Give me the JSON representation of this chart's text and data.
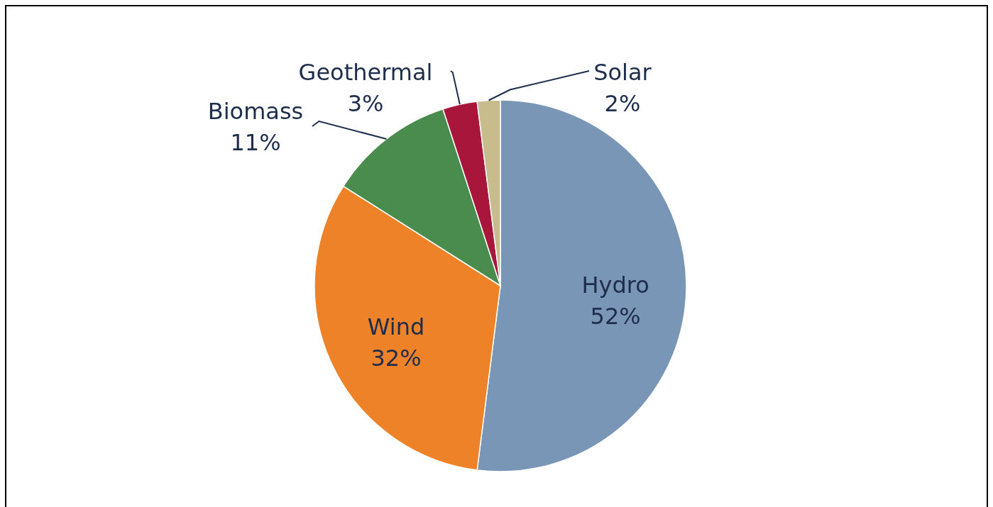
{
  "chart_data": {
    "type": "pie",
    "categories": [
      "Hydro",
      "Wind",
      "Biomass",
      "Geothermal",
      "Solar"
    ],
    "values": [
      52,
      32,
      11,
      3,
      2
    ],
    "colors": [
      "#7a96b6",
      "#ee8228",
      "#4a8c4e",
      "#a8173b",
      "#c8bb8c"
    ],
    "value_labels": [
      "52%",
      "32%",
      "11%",
      "3%",
      "2%"
    ]
  }
}
